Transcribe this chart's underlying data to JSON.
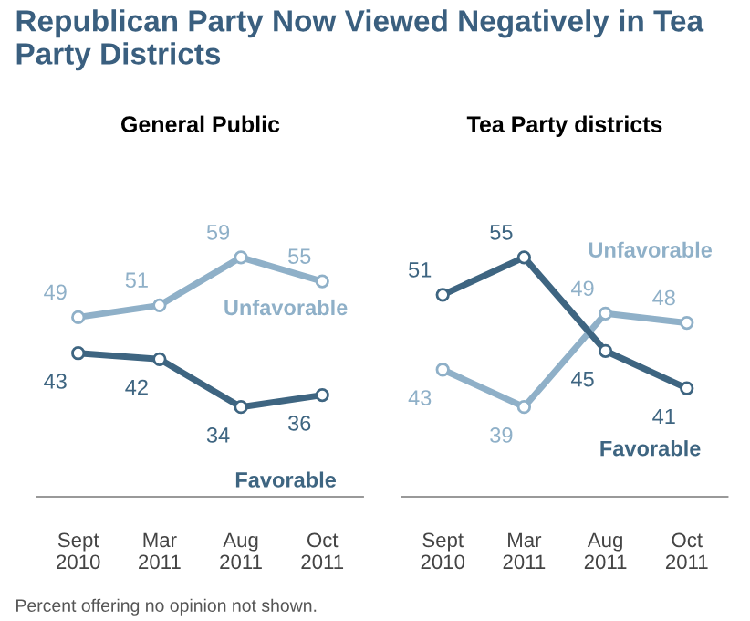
{
  "chart_data": [
    {
      "type": "line",
      "title": "Republican Party Now Viewed Negatively in Tea Party Districts",
      "subtitle": "General Public",
      "categories": [
        "Sept\n2010",
        "Mar\n2011",
        "Aug\n2011",
        "Oct\n2011"
      ],
      "tick_labels": "x",
      "data_labels": true,
      "marker": "circle",
      "grid": false,
      "legend": false,
      "series": [
        {
          "name": "Unfavorable",
          "color": "#8fb0c8",
          "values": [
            49,
            51,
            59,
            55
          ]
        },
        {
          "name": "Favorable",
          "color": "#3e6581",
          "values": [
            43,
            42,
            34,
            36
          ]
        }
      ]
    },
    {
      "type": "line",
      "subtitle": "Tea Party districts",
      "categories": [
        "Sept\n2010",
        "Mar\n2011",
        "Aug\n2011",
        "Oct\n2011"
      ],
      "tick_labels": "x",
      "data_labels": true,
      "marker": "circle",
      "grid": false,
      "legend": false,
      "annotations": [
        "Percent offering no opinion not shown."
      ],
      "series": [
        {
          "name": "Unfavorable",
          "color": "#8fb0c8",
          "values": [
            43,
            39,
            49,
            48
          ]
        },
        {
          "name": "Favorable",
          "color": "#3e6581",
          "values": [
            51,
            55,
            45,
            41
          ]
        }
      ]
    }
  ]
}
